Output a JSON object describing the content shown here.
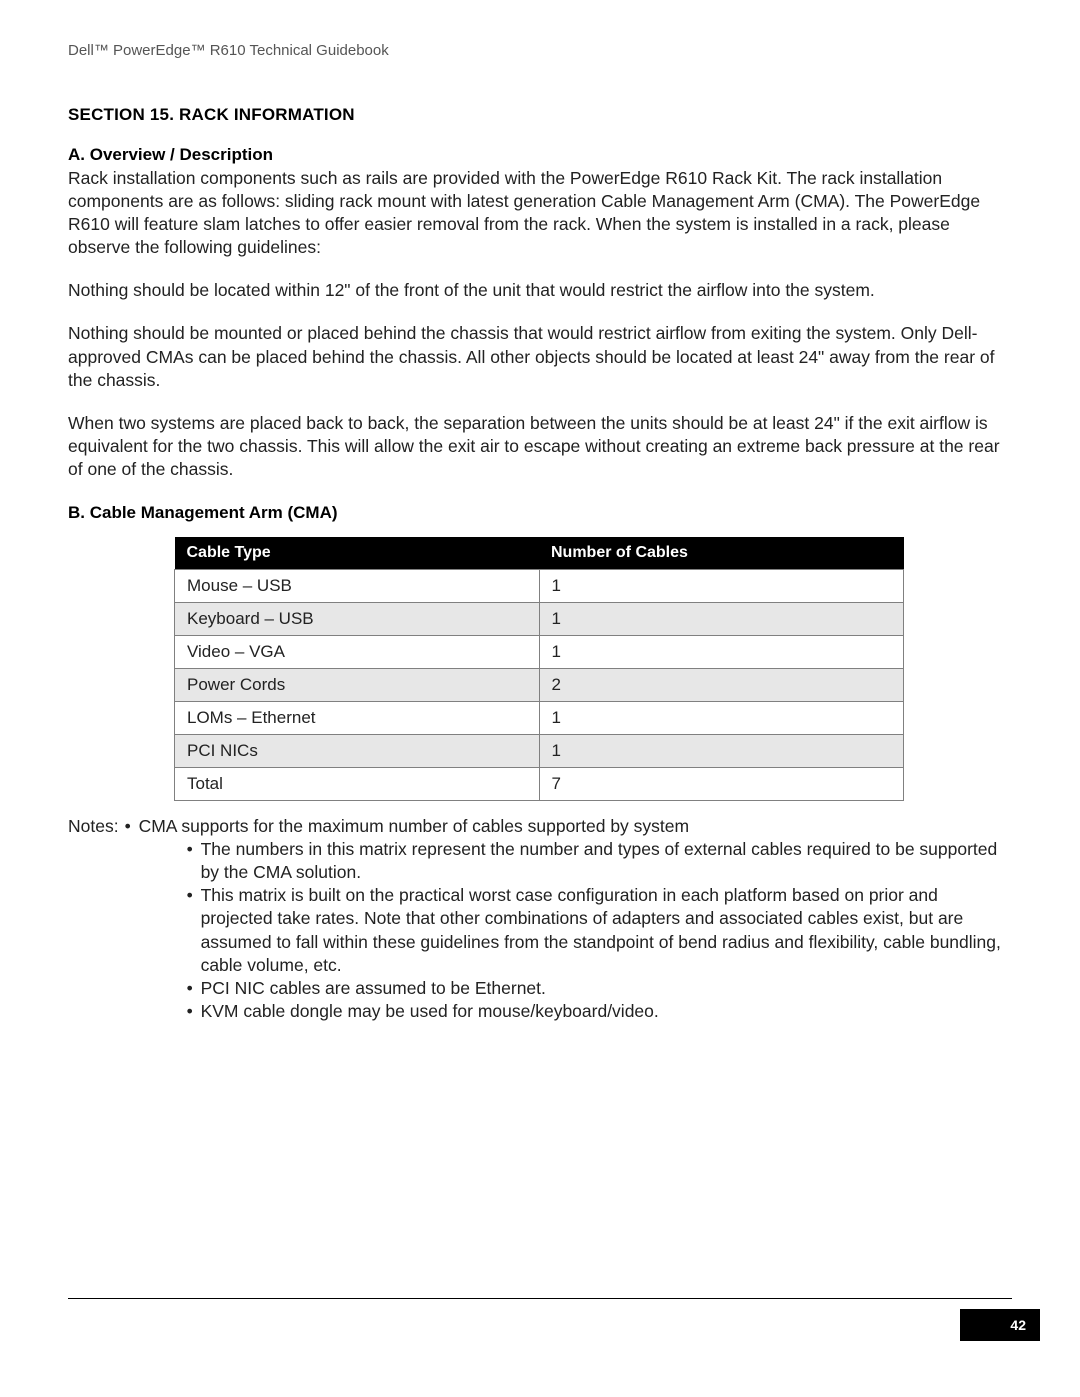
{
  "document": {
    "header": "Dell™ PowerEdge™ R610 Technical Guidebook",
    "page_number": "42"
  },
  "section": {
    "title": "SECTION 15. RACK INFORMATION",
    "a": {
      "heading": "A. Overview / Description",
      "p1": "Rack installation components such as rails are provided with the PowerEdge R610 Rack Kit. The rack installation components are as follows: sliding rack mount with latest generation Cable Management Arm (CMA). The PowerEdge R610 will feature slam latches to offer easier removal from the rack. When the system is installed in a rack, please observe the following guidelines:",
      "p2": "Nothing should be located within 12\" of the front of the unit that would restrict the airflow into the system.",
      "p3": "Nothing should be mounted or placed behind the chassis that would restrict airflow from exiting the system. Only Dell-approved CMAs can be placed behind the chassis. All other objects should be located at least 24\" away from the rear of the chassis.",
      "p4": "When two systems are placed back to back, the separation between the units should be at least 24\" if the exit airflow is equivalent for the two chassis. This will allow the exit air to escape without creating an extreme back pressure at the rear of one of the chassis."
    },
    "b": {
      "heading": "B. Cable Management Arm (CMA)",
      "table": {
        "columns": [
          "Cable Type",
          "Number of Cables"
        ],
        "rows": [
          [
            "Mouse – USB",
            "1"
          ],
          [
            "Keyboard – USB",
            "1"
          ],
          [
            "Video – VGA",
            "1"
          ],
          [
            "Power Cords",
            "2"
          ],
          [
            "LOMs – Ethernet",
            "1"
          ],
          [
            "PCI NICs",
            "1"
          ],
          [
            "Total",
            "7"
          ]
        ],
        "header_bg": "#000000",
        "header_fg": "#ffffff",
        "row_alt_bg": "#e7e7e7",
        "border_color": "#808080"
      },
      "notes_label": "Notes:",
      "notes_top": "CMA supports for the maximum number of cables supported by system",
      "notes_sub": [
        "The numbers in this matrix represent the number and types of external cables required to be supported by the CMA solution.",
        "This matrix is built on the practical worst case configuration in each platform based on prior and projected take rates. Note that other combinations of adapters and associated cables exist, but are assumed to fall within these guidelines from the standpoint of bend radius and flexibility, cable bundling, cable volume, etc.",
        "PCI NIC cables are assumed to be Ethernet.",
        "KVM cable dongle may be used for mouse/keyboard/video."
      ]
    }
  }
}
